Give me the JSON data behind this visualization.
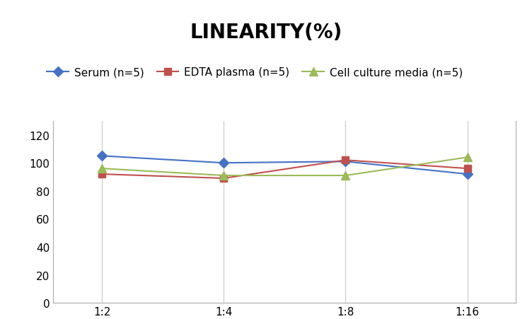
{
  "title": "LINEARITY(%)",
  "x_labels": [
    "1:2",
    "1:4",
    "1:8",
    "1:16"
  ],
  "series": [
    {
      "label": "Serum (n=5)",
      "values": [
        105,
        100,
        101,
        92
      ],
      "color": "#4472C4",
      "marker": "D",
      "marker_size": 7
    },
    {
      "label": "EDTA plasma (n=5)",
      "values": [
        92,
        89,
        102,
        96
      ],
      "color": "#C0504D",
      "marker": "s",
      "marker_size": 7
    },
    {
      "label": "Cell culture media (n=5)",
      "values": [
        96,
        91,
        91,
        104
      ],
      "color": "#9BBB59",
      "marker": "^",
      "marker_size": 8
    }
  ],
  "ylim": [
    0,
    130
  ],
  "yticks": [
    0,
    20,
    40,
    60,
    80,
    100,
    120
  ],
  "background_color": "#FFFFFF",
  "grid_color": "#C8C8C8",
  "title_fontsize": 20,
  "legend_fontsize": 11,
  "tick_fontsize": 11
}
